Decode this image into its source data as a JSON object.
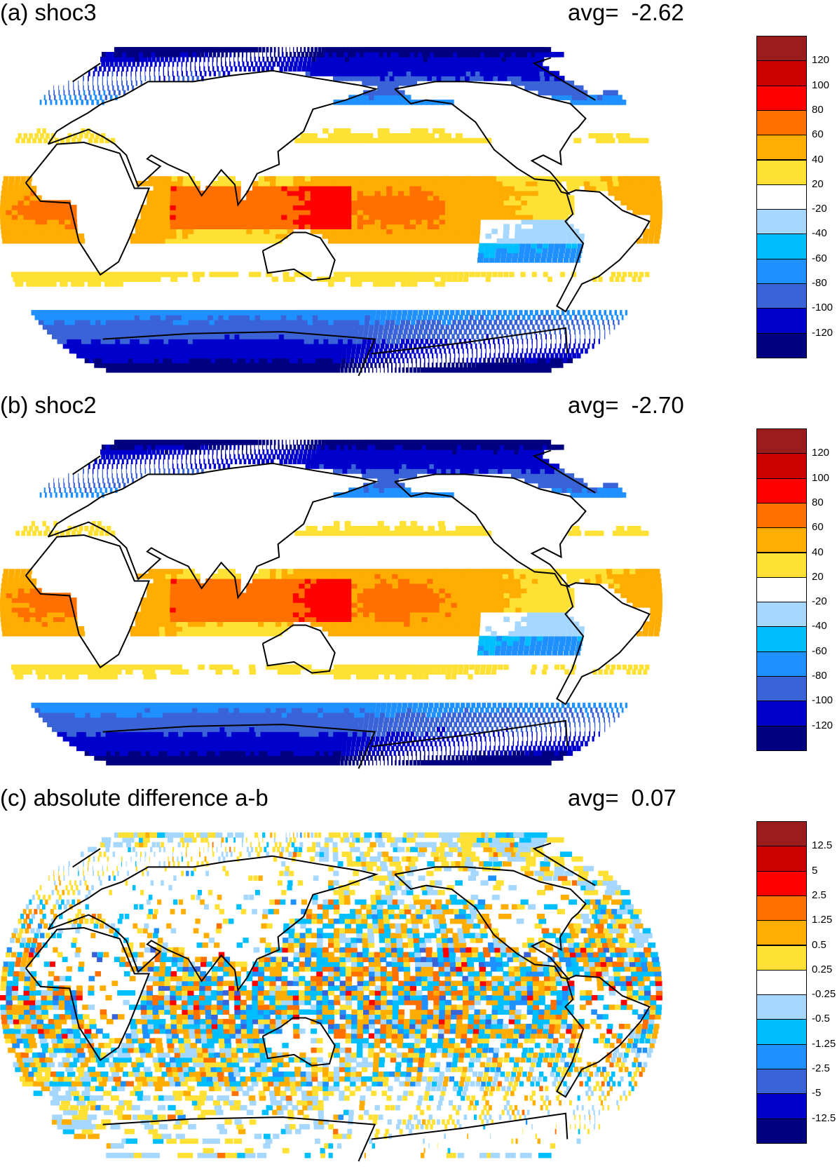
{
  "panels": [
    {
      "title": "(a) shoc3",
      "avg_label": "avg=",
      "avg_value": "-2.62",
      "type": "field",
      "colorbar": {
        "colors": [
          "#000080",
          "#0000cd",
          "#3a63d8",
          "#1e90ff",
          "#00bfff",
          "#a6d8ff",
          "#ffffff",
          "#ffe135",
          "#ffad00",
          "#ff7000",
          "#ff0000",
          "#cd0000",
          "#9b1c1c"
        ],
        "labels": [
          "-120",
          "-100",
          "-80",
          "-60",
          "-40",
          "-20",
          "20",
          "40",
          "60",
          "80",
          "100",
          "120"
        ]
      }
    },
    {
      "title": "(b) shoc2",
      "avg_label": "avg=",
      "avg_value": "-2.70",
      "type": "field",
      "colorbar": {
        "colors": [
          "#000080",
          "#0000cd",
          "#3a63d8",
          "#1e90ff",
          "#00bfff",
          "#a6d8ff",
          "#ffffff",
          "#ffe135",
          "#ffad00",
          "#ff7000",
          "#ff0000",
          "#cd0000",
          "#9b1c1c"
        ],
        "labels": [
          "-120",
          "-100",
          "-80",
          "-60",
          "-40",
          "-20",
          "20",
          "40",
          "60",
          "80",
          "100",
          "120"
        ]
      }
    },
    {
      "title": "(c) absolute difference a-b",
      "avg_label": "avg=",
      "avg_value": "0.07",
      "type": "diff",
      "colorbar": {
        "colors": [
          "#000080",
          "#0000cd",
          "#3a63d8",
          "#1e90ff",
          "#00bfff",
          "#a6d8ff",
          "#ffffff",
          "#ffe135",
          "#ffad00",
          "#ff7000",
          "#ff0000",
          "#cd0000",
          "#9b1c1c"
        ],
        "labels": [
          "-12.5",
          "-5",
          "-2.5",
          "-1.25",
          "-0.5",
          "-0.25",
          "0.25",
          "0.5",
          "1.25",
          "2.5",
          "5",
          "12.5"
        ]
      }
    }
  ]
}
